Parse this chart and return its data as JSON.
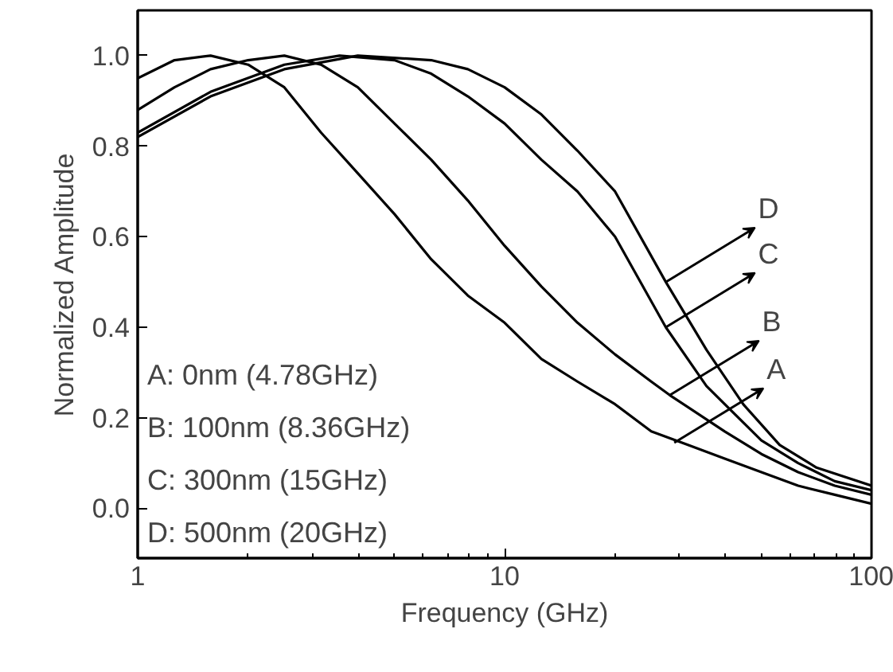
{
  "chart_data": {
    "type": "line",
    "xlabel": "Frequency (GHz)",
    "ylabel": "Normalized Amplitude",
    "log": "x",
    "xlim": [
      1,
      100
    ],
    "ylim": [
      -0.11,
      1.1
    ],
    "xticks": [
      1,
      10,
      100
    ],
    "yticks": [
      {
        "value": 0,
        "label": "0.0"
      },
      {
        "value": 0.2,
        "label": "0.2"
      },
      {
        "value": 0.4,
        "label": "0.4"
      },
      {
        "value": 0.6,
        "label": "0.6"
      },
      {
        "value": 0.8,
        "label": "0.8"
      },
      {
        "value": 1,
        "label": "1.0"
      }
    ],
    "grid": false,
    "marker": "none",
    "line_style": "solid",
    "series": [
      {
        "color": "#000000",
        "x": [
          1,
          1.26,
          1.58,
          2.0,
          2.51,
          3.16,
          3.98,
          5.01,
          6.31,
          7.94,
          10,
          12.6,
          15.8,
          20,
          25.1,
          31.6,
          39.8,
          50.1,
          63.1,
          79.4,
          100
        ],
        "values": [
          0.95,
          0.99,
          1.0,
          0.98,
          0.93,
          0.83,
          0.74,
          0.65,
          0.55,
          0.47,
          0.41,
          0.33,
          0.28,
          0.23,
          0.17,
          0.14,
          0.11,
          0.08,
          0.05,
          0.03,
          0.01
        ]
      },
      {
        "color": "#000000",
        "x": [
          1,
          1.26,
          1.58,
          2.0,
          2.51,
          3.16,
          3.98,
          5.01,
          6.31,
          7.94,
          10,
          12.6,
          15.8,
          20,
          25.1,
          28.2,
          39.8,
          50.1,
          63.1,
          79.4,
          100
        ],
        "values": [
          0.88,
          0.93,
          0.97,
          0.99,
          1.0,
          0.98,
          0.93,
          0.85,
          0.77,
          0.68,
          0.58,
          0.49,
          0.41,
          0.34,
          0.28,
          0.25,
          0.17,
          0.12,
          0.08,
          0.05,
          0.03
        ]
      },
      {
        "color": "#000000",
        "x": [
          1,
          1.58,
          2.51,
          3.55,
          5.01,
          6.31,
          7.94,
          10,
          12.6,
          15.8,
          20,
          27.5,
          35.5,
          50.1,
          63.1,
          79.4,
          100
        ],
        "values": [
          0.83,
          0.92,
          0.98,
          1.0,
          0.99,
          0.96,
          0.91,
          0.85,
          0.77,
          0.7,
          0.6,
          0.4,
          0.27,
          0.15,
          0.1,
          0.06,
          0.04
        ]
      },
      {
        "color": "#000000",
        "x": [
          1,
          1.58,
          2.51,
          3.98,
          6.31,
          7.94,
          10,
          12.6,
          15.8,
          20,
          27.5,
          35.5,
          44.7,
          56.2,
          70.8,
          100
        ],
        "values": [
          0.82,
          0.91,
          0.97,
          1.0,
          0.99,
          0.97,
          0.93,
          0.87,
          0.79,
          0.7,
          0.5,
          0.35,
          0.23,
          0.14,
          0.09,
          0.05
        ]
      }
    ],
    "annotations": [
      "A: 0nm (4.78GHz)",
      "B: 100nm (8.36GHz)",
      "C: 300nm (15GHz)",
      "D: 500nm (20GHz)",
      {
        "text": "D",
        "x": 27.5,
        "y": 0.5
      },
      {
        "text": "C",
        "x": 27.5,
        "y": 0.4
      },
      {
        "text": "B",
        "x": 28.2,
        "y": 0.25
      },
      {
        "text": "A",
        "x": 29,
        "y": 0.145
      }
    ]
  }
}
